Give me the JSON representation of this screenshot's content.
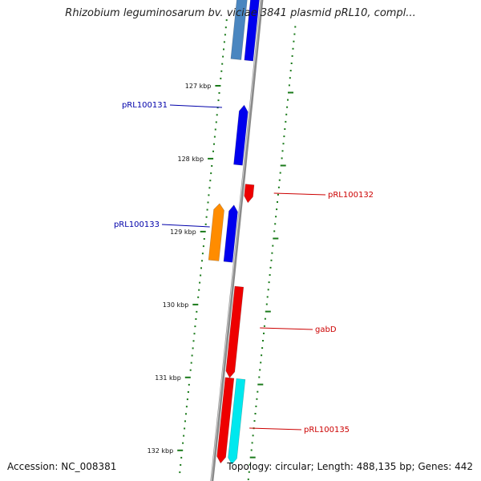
{
  "title": "Rhizobium leguminosarum bv. viciae 3841 plasmid pRL10, compl...",
  "footer": {
    "accession": "Accession: NC_008381",
    "summary": "Topology: circular; Length: 488,135 bp; Genes: 442"
  },
  "colors": {
    "backbone": "#8a8a8a",
    "tick": "#1a7a1a",
    "forward_gene": "#0000ee",
    "forward_gene_alt": "#4a86c0",
    "reverse_gene": "#ee0000",
    "orange_gene": "#ff8c00",
    "cyan_gene": "#00e8ee",
    "forward_label": "#0000aa",
    "reverse_label": "#cc0000"
  },
  "scale": {
    "unit": "kbp",
    "major_ticks": [
      {
        "kbp": 127,
        "label": "127 kbp"
      },
      {
        "kbp": 128,
        "label": "128 kbp"
      },
      {
        "kbp": 129,
        "label": "129 kbp"
      },
      {
        "kbp": 130,
        "label": "130 kbp"
      },
      {
        "kbp": 131,
        "label": "131 kbp"
      },
      {
        "kbp": 132,
        "label": "132 kbp"
      }
    ]
  },
  "genes": [
    {
      "name": "pRL100131",
      "strand": "+",
      "color": "forward_gene",
      "start_kbp": 127.23,
      "end_kbp": 128.05
    },
    {
      "name": "pRL100132",
      "strand": "-",
      "color": "reverse_gene",
      "start_kbp": 128.3,
      "end_kbp": 128.55
    },
    {
      "name": "pRL100133",
      "strand": "+",
      "color": "orange_gene",
      "start_kbp": 128.6,
      "end_kbp": 129.38
    },
    {
      "name": "",
      "strand": "+",
      "color": "forward_gene",
      "start_kbp": 128.6,
      "end_kbp": 129.38
    },
    {
      "name": "gabD",
      "strand": "-",
      "color": "reverse_gene",
      "start_kbp": 129.7,
      "end_kbp": 130.95
    },
    {
      "name": "pRL100135",
      "strand": "-",
      "color": "reverse_gene",
      "start_kbp": 130.95,
      "end_kbp": 132.12
    },
    {
      "name": "",
      "strand": "-",
      "color": "cyan_gene",
      "start_kbp": 130.95,
      "end_kbp": 132.12
    }
  ],
  "labels": [
    {
      "text": "pRL100131",
      "side": "left",
      "gene": "pRL100131"
    },
    {
      "text": "pRL100132",
      "side": "right",
      "gene": "pRL100132"
    },
    {
      "text": "pRL100133",
      "side": "left",
      "gene": "pRL100133"
    },
    {
      "text": "gabD",
      "side": "right",
      "gene": "gabD"
    },
    {
      "text": "pRL100135",
      "side": "right",
      "gene": "pRL100135"
    }
  ]
}
